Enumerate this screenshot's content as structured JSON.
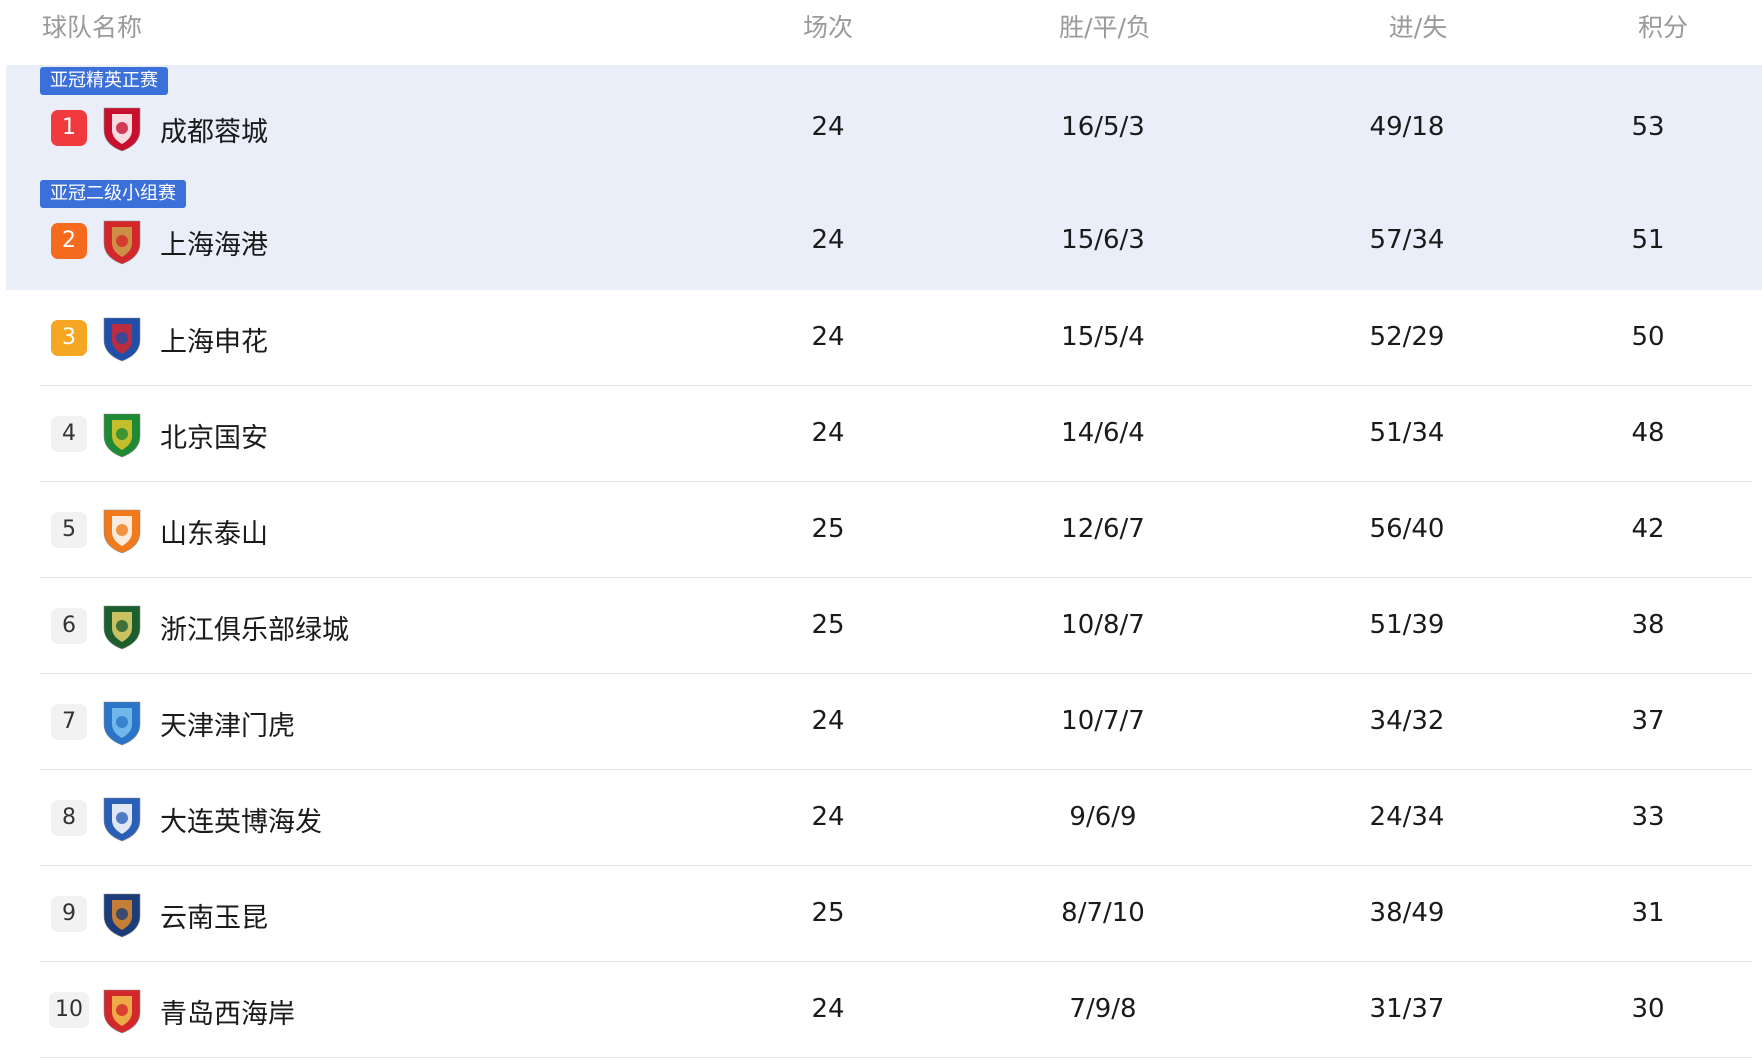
{
  "header": {
    "name": "球队名称",
    "played": "场次",
    "wdl": "胜/平/负",
    "goals": "进/失",
    "points": "积分"
  },
  "colors": {
    "band": "#e9eef9",
    "tag": "#3b6fd9",
    "rank1": "#f03a3e",
    "rank2": "#f56a1c",
    "rank3": "#f5a623"
  },
  "rows": [
    {
      "rank": "1",
      "tag": "亚冠精英正赛",
      "name": "成都蓉城",
      "played": "24",
      "wdl": "16/5/3",
      "goals": "49/18",
      "points": "53",
      "logo": "chengdu-crest",
      "c1": "#c8102e",
      "c2": "#ffffff"
    },
    {
      "rank": "2",
      "tag": "亚冠二级小组赛",
      "name": "上海海港",
      "played": "24",
      "wdl": "15/6/3",
      "goals": "57/34",
      "points": "51",
      "logo": "shanghai-port-crest",
      "c1": "#d3282b",
      "c2": "#c9a24a"
    },
    {
      "rank": "3",
      "name": "上海申花",
      "played": "24",
      "wdl": "15/5/4",
      "goals": "52/29",
      "points": "50",
      "logo": "shenhua-crest",
      "c1": "#1f4fa8",
      "c2": "#d6262e"
    },
    {
      "rank": "4",
      "name": "北京国安",
      "played": "24",
      "wdl": "14/6/4",
      "goals": "51/34",
      "points": "48",
      "logo": "guoan-crest",
      "c1": "#1e8a35",
      "c2": "#e2c72a"
    },
    {
      "rank": "5",
      "name": "山东泰山",
      "played": "25",
      "wdl": "12/6/7",
      "goals": "56/40",
      "points": "42",
      "logo": "taishan-crest",
      "c1": "#f07a1c",
      "c2": "#ffffff"
    },
    {
      "rank": "6",
      "name": "浙江俱乐部绿城",
      "played": "25",
      "wdl": "10/8/7",
      "goals": "51/39",
      "points": "38",
      "logo": "zhejiang-crest",
      "c1": "#1d5e2e",
      "c2": "#e6d36b"
    },
    {
      "rank": "7",
      "name": "天津津门虎",
      "played": "24",
      "wdl": "10/7/7",
      "goals": "34/32",
      "points": "37",
      "logo": "tianjin-crest",
      "c1": "#2a74c9",
      "c2": "#7ec3f0"
    },
    {
      "rank": "8",
      "name": "大连英博海发",
      "played": "24",
      "wdl": "9/6/9",
      "goals": "24/34",
      "points": "33",
      "logo": "dalian-crest",
      "c1": "#2a5fb8",
      "c2": "#ffffff"
    },
    {
      "rank": "9",
      "name": "云南玉昆",
      "played": "25",
      "wdl": "8/7/10",
      "goals": "38/49",
      "points": "31",
      "logo": "yunnan-crest",
      "c1": "#1d3c7a",
      "c2": "#e38a2a"
    },
    {
      "rank": "10",
      "name": "青岛西海岸",
      "played": "24",
      "wdl": "7/9/8",
      "goals": "31/37",
      "points": "30",
      "logo": "qingdao-crest",
      "c1": "#d3282b",
      "c2": "#f2c14e"
    }
  ]
}
